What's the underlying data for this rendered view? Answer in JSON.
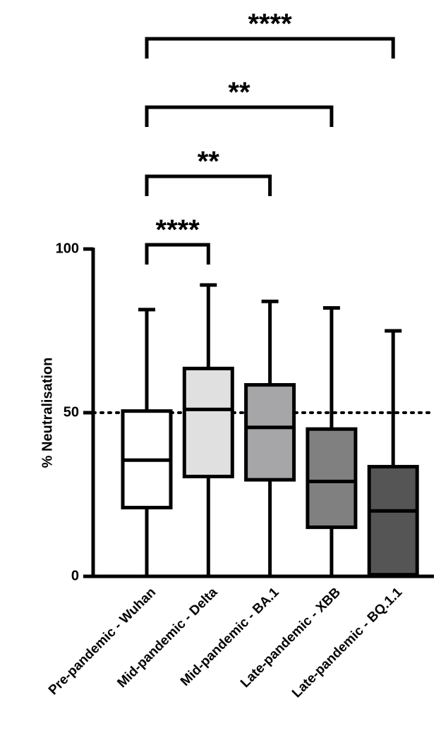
{
  "chart_data": {
    "type": "box",
    "y_label": "% Neutralisation",
    "categories": [
      "Pre-pandemic - Wuhan",
      "Mid-pandemic - Delta",
      "Mid-pandemic - BA.1",
      "Late-pandemic - XBB",
      "Late-pandemic - BQ.1.1"
    ],
    "boxes": [
      {
        "min": 0,
        "q1": 21,
        "median": 35.5,
        "q3": 50.5,
        "max": 81.5,
        "color": "#ffffff"
      },
      {
        "min": 0,
        "q1": 30.5,
        "median": 51,
        "q3": 63.5,
        "max": 89,
        "color": "#e0e0e0"
      },
      {
        "min": 0,
        "q1": 29.5,
        "median": 45.5,
        "q3": 58.5,
        "max": 84,
        "color": "#a6a6a8"
      },
      {
        "min": 0,
        "q1": 15,
        "median": 29,
        "q3": 45,
        "max": 82,
        "color": "#808080"
      },
      {
        "min": 0,
        "q1": 0.5,
        "median": 20,
        "q3": 33.5,
        "max": 75,
        "color": "#555555"
      }
    ],
    "reference_line": 50,
    "significance": [
      "****",
      "**",
      "**",
      "****"
    ],
    "ylim": [
      0,
      100
    ],
    "yticks": [
      0,
      50,
      100
    ]
  }
}
